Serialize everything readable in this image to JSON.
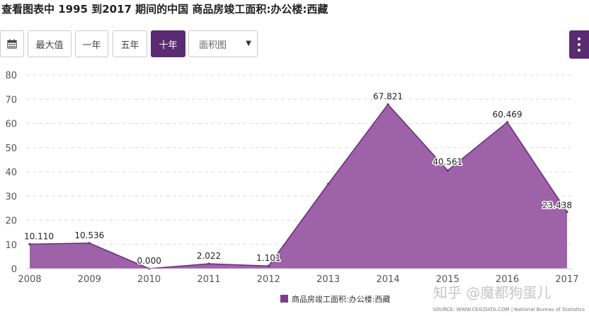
{
  "page": {
    "title": "查看图表中 1995 到2017 期间的中国 商品房竣工面积:办公楼:西藏"
  },
  "toolbar": {
    "calendar_icon": "calendar-icon",
    "buttons": [
      "最大值",
      "一年",
      "五年",
      "十年"
    ],
    "active_index": 3,
    "select_value": "面积图",
    "menu_icon": "kebab-menu-icon"
  },
  "chart_data": {
    "type": "area",
    "x": [
      "2008",
      "2009",
      "2010",
      "2011",
      "2012",
      "2013",
      "2014",
      "2015",
      "2016",
      "2017"
    ],
    "series": [
      {
        "name": "商品房竣工面积:办公楼:西藏",
        "values": [
          10.11,
          10.536,
          0.0,
          2.022,
          1.101,
          35.0,
          67.821,
          40.561,
          60.469,
          23.438
        ],
        "labels": [
          "10.110",
          "10.536",
          "0.000",
          "2.022",
          "1.101",
          "",
          "67.821",
          "40.561",
          "60.469",
          "23.438"
        ]
      }
    ],
    "ylim": [
      0,
      80
    ],
    "yticks": [
      "0",
      "10",
      "20",
      "30",
      "40",
      "50",
      "60",
      "70",
      "80"
    ],
    "grid": true,
    "legend_position": "bottom-center",
    "colors": {
      "fill": "#9a5da5",
      "line": "#6a2c7a",
      "legend": "#7b3e8c"
    }
  },
  "footer": {
    "source": "SOURCE: WWW.CEICDATA.COM | National Bureau of Statistics",
    "watermark": "知乎 @魔都狗蛋儿"
  }
}
